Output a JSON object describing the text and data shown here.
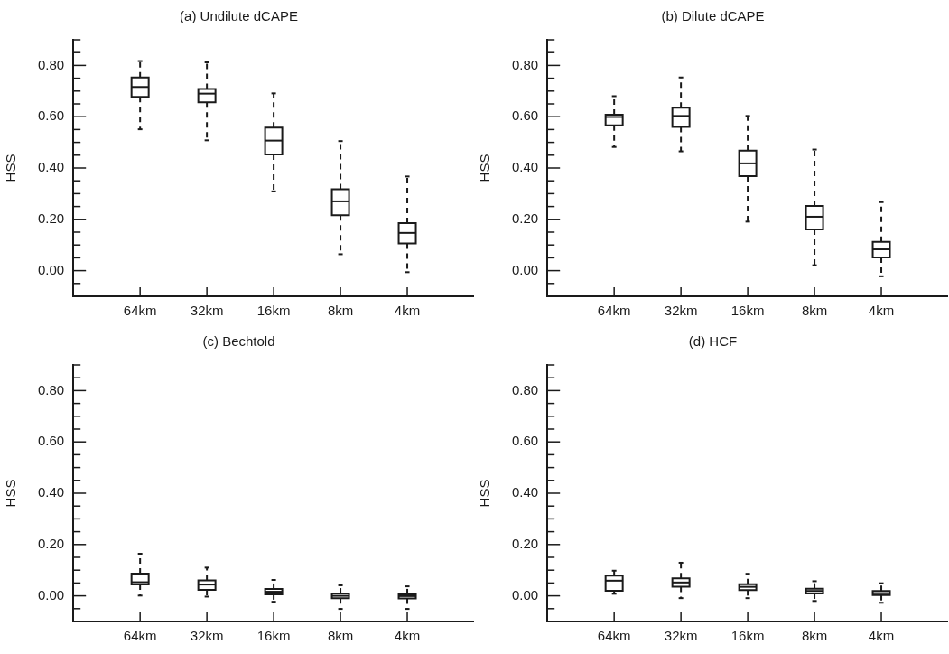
{
  "chart_data": [
    {
      "type": "box",
      "title": "(a) Undilute dCAPE",
      "ylabel": "HSS",
      "categories": [
        "64km",
        "32km",
        "16km",
        "8km",
        "4km"
      ],
      "ylim": [
        -0.1,
        0.9
      ],
      "yticks": [
        {
          "value": -0.05,
          "label": null
        },
        {
          "value": 0,
          "label": "0.00"
        },
        {
          "value": 0.05,
          "label": null
        },
        {
          "value": 0.1,
          "label": null
        },
        {
          "value": 0.15,
          "label": null
        },
        {
          "value": 0.2,
          "label": "0.20"
        },
        {
          "value": 0.25,
          "label": null
        },
        {
          "value": 0.3,
          "label": null
        },
        {
          "value": 0.35,
          "label": null
        },
        {
          "value": 0.4,
          "label": "0.40"
        },
        {
          "value": 0.45,
          "label": null
        },
        {
          "value": 0.5,
          "label": null
        },
        {
          "value": 0.55,
          "label": null
        },
        {
          "value": 0.6,
          "label": "0.60"
        },
        {
          "value": 0.65,
          "label": null
        },
        {
          "value": 0.7,
          "label": null
        },
        {
          "value": 0.75,
          "label": null
        },
        {
          "value": 0.8,
          "label": "0.80"
        },
        {
          "value": 0.85,
          "label": null
        },
        {
          "value": 0.9,
          "label": null
        }
      ],
      "boxes": [
        {
          "low": 0.551,
          "q1": 0.677,
          "median": 0.716,
          "q3": 0.753,
          "high": 0.817
        },
        {
          "low": 0.508,
          "q1": 0.656,
          "median": 0.69,
          "q3": 0.708,
          "high": 0.812
        },
        {
          "low": 0.309,
          "q1": 0.453,
          "median": 0.507,
          "q3": 0.558,
          "high": 0.691
        },
        {
          "low": 0.064,
          "q1": 0.216,
          "median": 0.27,
          "q3": 0.317,
          "high": 0.505
        },
        {
          "low": -0.006,
          "q1": 0.106,
          "median": 0.147,
          "q3": 0.185,
          "high": 0.367
        }
      ]
    },
    {
      "type": "box",
      "title": "(b) Dilute dCAPE",
      "ylabel": "HSS",
      "categories": [
        "64km",
        "32km",
        "16km",
        "8km",
        "4km"
      ],
      "ylim": [
        -0.1,
        0.9
      ],
      "yticks": [
        {
          "value": -0.05,
          "label": null
        },
        {
          "value": 0,
          "label": "0.00"
        },
        {
          "value": 0.05,
          "label": null
        },
        {
          "value": 0.1,
          "label": null
        },
        {
          "value": 0.15,
          "label": null
        },
        {
          "value": 0.2,
          "label": "0.20"
        },
        {
          "value": 0.25,
          "label": null
        },
        {
          "value": 0.3,
          "label": null
        },
        {
          "value": 0.35,
          "label": null
        },
        {
          "value": 0.4,
          "label": "0.40"
        },
        {
          "value": 0.45,
          "label": null
        },
        {
          "value": 0.5,
          "label": null
        },
        {
          "value": 0.55,
          "label": null
        },
        {
          "value": 0.6,
          "label": "0.60"
        },
        {
          "value": 0.65,
          "label": null
        },
        {
          "value": 0.7,
          "label": null
        },
        {
          "value": 0.75,
          "label": null
        },
        {
          "value": 0.8,
          "label": "0.80"
        },
        {
          "value": 0.85,
          "label": null
        },
        {
          "value": 0.9,
          "label": null
        }
      ],
      "boxes": [
        {
          "low": 0.482,
          "q1": 0.566,
          "median": 0.599,
          "q3": 0.608,
          "high": 0.68
        },
        {
          "low": 0.465,
          "q1": 0.56,
          "median": 0.603,
          "q3": 0.635,
          "high": 0.753
        },
        {
          "low": 0.191,
          "q1": 0.368,
          "median": 0.418,
          "q3": 0.468,
          "high": 0.603
        },
        {
          "low": 0.021,
          "q1": 0.161,
          "median": 0.21,
          "q3": 0.252,
          "high": 0.472
        },
        {
          "low": -0.022,
          "q1": 0.051,
          "median": 0.083,
          "q3": 0.112,
          "high": 0.267
        }
      ]
    },
    {
      "type": "box",
      "title": "(c) Bechtold",
      "ylabel": "HSS",
      "categories": [
        "64km",
        "32km",
        "16km",
        "8km",
        "4km"
      ],
      "ylim": [
        -0.1,
        0.9
      ],
      "yticks": [
        {
          "value": -0.05,
          "label": null
        },
        {
          "value": 0,
          "label": "0.00"
        },
        {
          "value": 0.05,
          "label": null
        },
        {
          "value": 0.1,
          "label": null
        },
        {
          "value": 0.15,
          "label": null
        },
        {
          "value": 0.2,
          "label": "0.20"
        },
        {
          "value": 0.25,
          "label": null
        },
        {
          "value": 0.3,
          "label": null
        },
        {
          "value": 0.35,
          "label": null
        },
        {
          "value": 0.4,
          "label": "0.40"
        },
        {
          "value": 0.45,
          "label": null
        },
        {
          "value": 0.5,
          "label": null
        },
        {
          "value": 0.55,
          "label": null
        },
        {
          "value": 0.6,
          "label": "0.60"
        },
        {
          "value": 0.65,
          "label": null
        },
        {
          "value": 0.7,
          "label": null
        },
        {
          "value": 0.75,
          "label": null
        },
        {
          "value": 0.8,
          "label": "0.80"
        },
        {
          "value": 0.85,
          "label": null
        },
        {
          "value": 0.9,
          "label": null
        }
      ],
      "boxes": [
        {
          "low": 0.001,
          "q1": 0.044,
          "median": 0.053,
          "q3": 0.087,
          "high": 0.164
        },
        {
          "low": -0.003,
          "q1": 0.023,
          "median": 0.044,
          "q3": 0.06,
          "high": 0.11
        },
        {
          "low": -0.023,
          "q1": 0.006,
          "median": 0.016,
          "q3": 0.027,
          "high": 0.062
        },
        {
          "low": -0.051,
          "q1": -0.009,
          "median": 0.0,
          "q3": 0.009,
          "high": 0.041
        },
        {
          "low": -0.051,
          "q1": -0.01,
          "median": -0.001,
          "q3": 0.006,
          "high": 0.037
        }
      ]
    },
    {
      "type": "box",
      "title": "(d) HCF",
      "ylabel": "HSS",
      "categories": [
        "64km",
        "32km",
        "16km",
        "8km",
        "4km"
      ],
      "ylim": [
        -0.1,
        0.9
      ],
      "yticks": [
        {
          "value": -0.05,
          "label": null
        },
        {
          "value": 0,
          "label": "0.00"
        },
        {
          "value": 0.05,
          "label": null
        },
        {
          "value": 0.1,
          "label": null
        },
        {
          "value": 0.15,
          "label": null
        },
        {
          "value": 0.2,
          "label": "0.20"
        },
        {
          "value": 0.25,
          "label": null
        },
        {
          "value": 0.3,
          "label": null
        },
        {
          "value": 0.35,
          "label": null
        },
        {
          "value": 0.4,
          "label": "0.40"
        },
        {
          "value": 0.45,
          "label": null
        },
        {
          "value": 0.5,
          "label": null
        },
        {
          "value": 0.55,
          "label": null
        },
        {
          "value": 0.6,
          "label": "0.60"
        },
        {
          "value": 0.65,
          "label": null
        },
        {
          "value": 0.7,
          "label": null
        },
        {
          "value": 0.75,
          "label": null
        },
        {
          "value": 0.8,
          "label": "0.80"
        },
        {
          "value": 0.85,
          "label": null
        },
        {
          "value": 0.9,
          "label": null
        }
      ],
      "boxes": [
        {
          "low": 0.008,
          "q1": 0.02,
          "median": 0.059,
          "q3": 0.079,
          "high": 0.098
        },
        {
          "low": -0.009,
          "q1": 0.036,
          "median": 0.052,
          "q3": 0.068,
          "high": 0.129
        },
        {
          "low": -0.009,
          "q1": 0.022,
          "median": 0.035,
          "q3": 0.045,
          "high": 0.086
        },
        {
          "low": -0.02,
          "q1": 0.009,
          "median": 0.019,
          "q3": 0.028,
          "high": 0.057
        },
        {
          "low": -0.027,
          "q1": 0.003,
          "median": 0.01,
          "q3": 0.019,
          "high": 0.049
        }
      ]
    }
  ]
}
